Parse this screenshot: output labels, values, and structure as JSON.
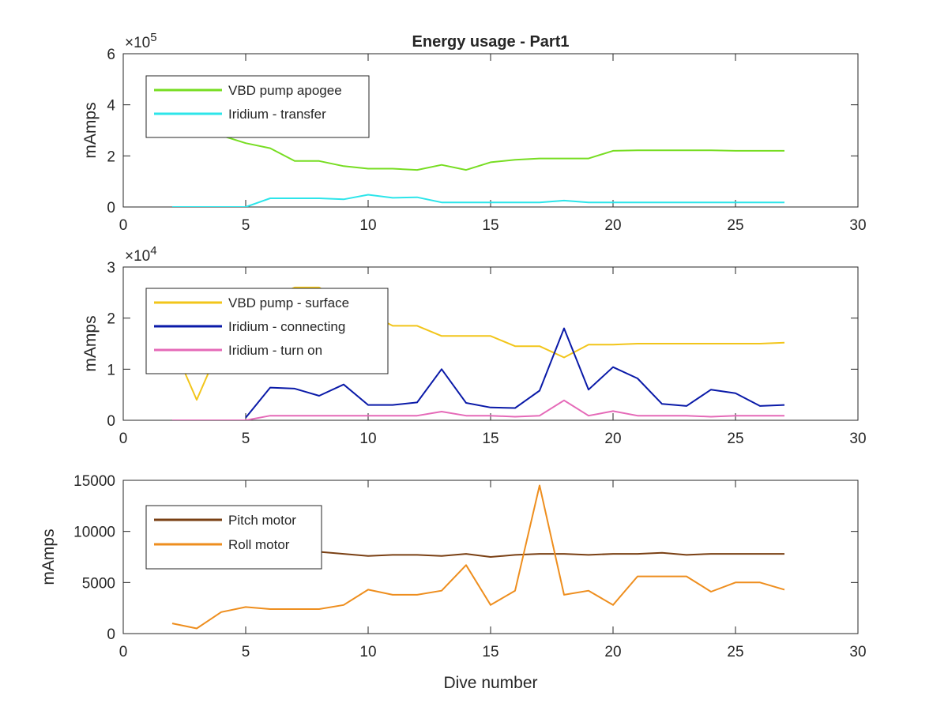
{
  "title": "Energy usage - Part1",
  "xlabel": "Dive number",
  "chart_data": [
    {
      "type": "line",
      "title": "Energy usage - Part1",
      "ylabel": "mAmps",
      "xlabel": "",
      "xlim": [
        0,
        30
      ],
      "ylim": [
        0,
        600000
      ],
      "xticks": [
        "0",
        "5",
        "10",
        "15",
        "20",
        "25",
        "30"
      ],
      "yticks": [
        "0",
        "2",
        "4",
        "6"
      ],
      "exponent": "5",
      "legend_position": "top-left",
      "grid": false,
      "series": [
        {
          "name": "VBD pump apogee",
          "color": "#77dd22",
          "x": [
            2,
            3,
            4,
            5,
            6,
            7,
            8,
            9,
            10,
            11,
            12,
            13,
            14,
            15,
            16,
            17,
            18,
            19,
            20,
            21,
            22,
            23,
            24,
            25,
            26,
            27
          ],
          "y": [
            380000,
            330000,
            280000,
            250000,
            230000,
            180000,
            180000,
            160000,
            150000,
            150000,
            145000,
            165000,
            145000,
            175000,
            185000,
            190000,
            190000,
            190000,
            220000,
            222000,
            222000,
            222000,
            222000,
            220000,
            220000,
            220000
          ]
        },
        {
          "name": "Iridium - transfer",
          "color": "#2de5ea",
          "x": [
            2,
            3,
            4,
            5,
            6,
            7,
            8,
            9,
            10,
            11,
            12,
            13,
            14,
            15,
            16,
            17,
            18,
            19,
            20,
            21,
            22,
            23,
            24,
            25,
            26,
            27
          ],
          "y": [
            0,
            0,
            0,
            0,
            34000,
            34000,
            34000,
            30000,
            48000,
            36000,
            38000,
            18000,
            18000,
            18000,
            18000,
            18000,
            25000,
            18000,
            18000,
            18000,
            18000,
            18000,
            18000,
            18000,
            18000,
            18000
          ]
        }
      ]
    },
    {
      "type": "line",
      "ylabel": "mAmps",
      "xlabel": "",
      "xlim": [
        0,
        30
      ],
      "ylim": [
        0,
        30000
      ],
      "xticks": [
        "0",
        "5",
        "10",
        "15",
        "20",
        "25",
        "30"
      ],
      "yticks": [
        "0",
        "1",
        "2",
        "3"
      ],
      "exponent": "4",
      "legend_position": "top-left",
      "grid": false,
      "series": [
        {
          "name": "VBD pump - surface",
          "color": "#f2c51a",
          "x": [
            2,
            3,
            4,
            5,
            6,
            7,
            8,
            9,
            10,
            11,
            12,
            13,
            14,
            15,
            16,
            17,
            18,
            19,
            20,
            21,
            22,
            23,
            24,
            25,
            26,
            27
          ],
          "y": [
            15000,
            4000,
            15000,
            22000,
            24000,
            26000,
            26000,
            23000,
            21000,
            18500,
            18500,
            16500,
            16500,
            16500,
            14500,
            14500,
            12300,
            14800,
            14800,
            15000,
            15000,
            15000,
            15000,
            15000,
            15000,
            15200
          ]
        },
        {
          "name": "Iridium - connecting",
          "color": "#0a1aa8",
          "x": [
            5,
            6,
            7,
            8,
            9,
            10,
            11,
            12,
            13,
            14,
            15,
            16,
            17,
            18,
            19,
            20,
            21,
            22,
            23,
            24,
            25,
            26,
            27
          ],
          "y": [
            500,
            6400,
            6200,
            4800,
            7000,
            3000,
            3000,
            3500,
            10000,
            3400,
            2500,
            2400,
            5800,
            18000,
            6000,
            10400,
            8200,
            3200,
            2800,
            6000,
            5300,
            2800,
            3000
          ]
        },
        {
          "name": "Iridium - turn on",
          "color": "#e56ab8",
          "x": [
            2,
            3,
            4,
            5,
            6,
            7,
            8,
            9,
            10,
            11,
            12,
            13,
            14,
            15,
            16,
            17,
            18,
            19,
            20,
            21,
            22,
            23,
            24,
            25,
            26,
            27
          ],
          "y": [
            0,
            0,
            0,
            0,
            900,
            900,
            900,
            900,
            900,
            900,
            900,
            1700,
            900,
            900,
            700,
            900,
            3900,
            900,
            1800,
            900,
            900,
            900,
            700,
            900,
            900,
            900
          ]
        }
      ]
    },
    {
      "type": "line",
      "ylabel": "mAmps",
      "xlabel": "Dive number",
      "xlim": [
        0,
        30
      ],
      "ylim": [
        0,
        15000
      ],
      "xticks": [
        "0",
        "5",
        "10",
        "15",
        "20",
        "25",
        "30"
      ],
      "yticks": [
        "0",
        "5000",
        "10000",
        "15000"
      ],
      "exponent": "",
      "legend_position": "top-left",
      "grid": false,
      "series": [
        {
          "name": "Pitch motor",
          "color": "#7a4014",
          "x": [
            8,
            9,
            10,
            11,
            12,
            13,
            14,
            15,
            16,
            17,
            18,
            19,
            20,
            21,
            22,
            23,
            24,
            25,
            26,
            27
          ],
          "y": [
            8000,
            7800,
            7600,
            7700,
            7700,
            7600,
            7800,
            7500,
            7700,
            7800,
            7800,
            7700,
            7800,
            7800,
            7900,
            7700,
            7800,
            7800,
            7800,
            7800
          ]
        },
        {
          "name": "Roll motor",
          "color": "#ee8e1e",
          "x": [
            2,
            3,
            4,
            5,
            6,
            7,
            8,
            9,
            10,
            11,
            12,
            13,
            14,
            15,
            16,
            17,
            18,
            19,
            20,
            21,
            22,
            23,
            24,
            25,
            26,
            27
          ],
          "y": [
            1000,
            500,
            2100,
            2600,
            2400,
            2400,
            2400,
            2800,
            4300,
            3800,
            3800,
            4200,
            6700,
            2800,
            4200,
            14500,
            3800,
            4200,
            2800,
            5600,
            5600,
            5600,
            4100,
            5000,
            5000,
            4300
          ]
        }
      ]
    }
  ]
}
